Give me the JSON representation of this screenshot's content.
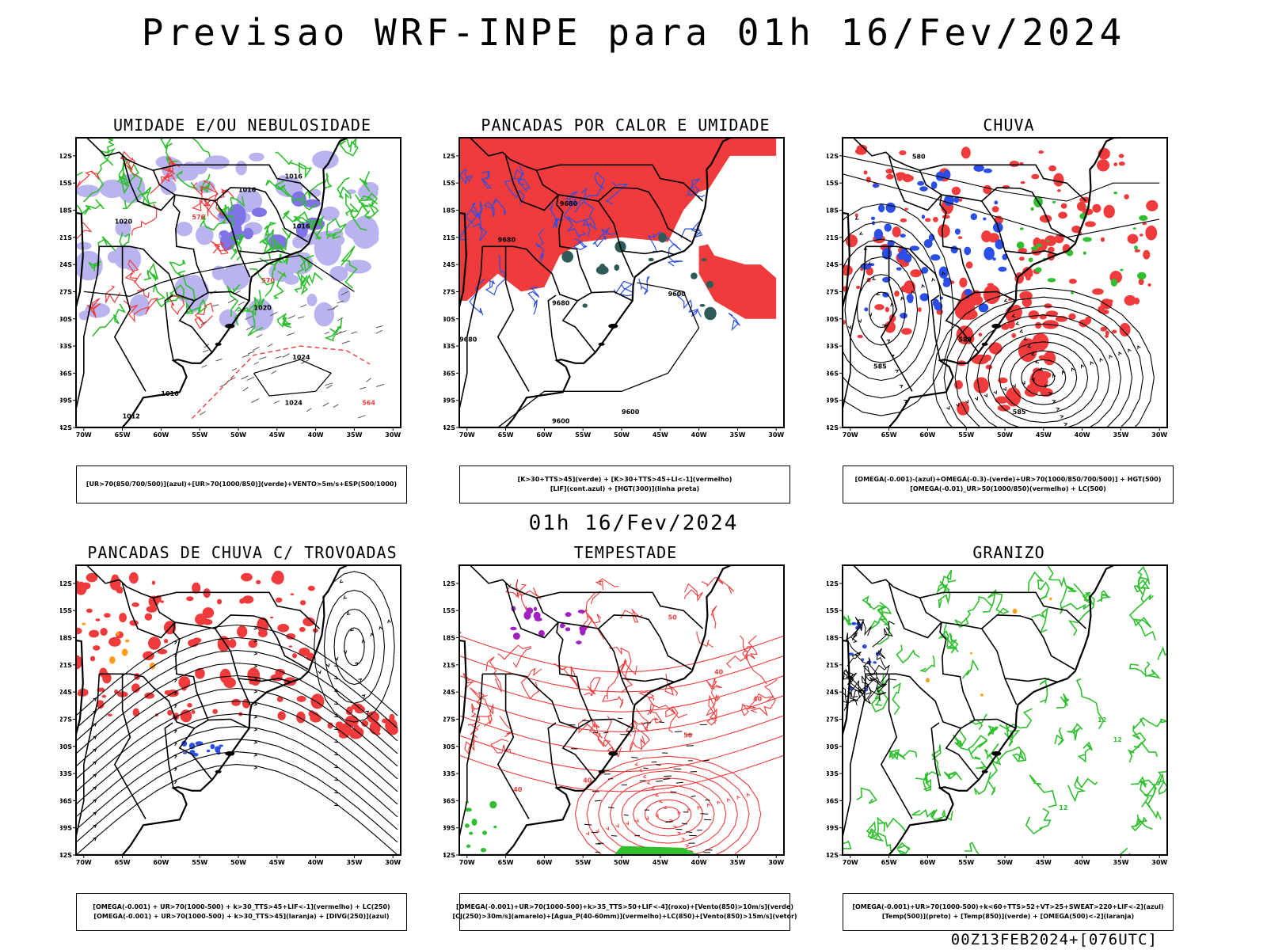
{
  "header": {
    "title": "Previsao WRF-INPE  para 01h 16/Fev/2024"
  },
  "mid_label": "01h 16/Fev/2024",
  "footer": "00Z13FEB2024+[076UTC]",
  "axes": {
    "lat_labels": [
      "12S",
      "15S",
      "18S",
      "21S",
      "24S",
      "27S",
      "30S",
      "33S",
      "36S",
      "39S",
      "42S"
    ],
    "lon_labels": [
      "70W",
      "65W",
      "60W",
      "55W",
      "50W",
      "45W",
      "40W",
      "35W",
      "30W"
    ]
  },
  "colors": {
    "red": "#ef3b3b",
    "green": "#2fbf2f",
    "blue": "#2b4fe6",
    "lavender": "#b9b4f0",
    "teal": "#2d5b57",
    "orange": "#ff9d1a",
    "purple": "#a020c0"
  },
  "panels": [
    {
      "title": "UMIDADE E/OU NEBULOSIDADE",
      "legend": [
        "[UR>70(850/700/500)](azul)+[UR>70(1000/850)](verde)+VENTO>5m/s+ESP(500/1000)"
      ],
      "contour_labels": [
        "1016",
        "1016",
        "1020",
        "1016",
        "1024",
        "1020",
        "1024",
        "1012",
        "1016"
      ],
      "red_labels": [
        "576",
        "570",
        "564"
      ]
    },
    {
      "title": "PANCADAS POR CALOR E UMIDADE",
      "legend": [
        "[K>30+TTS>45](verde) + [K>30+TTS>45+LI<-1](vermelho)",
        "[LIF](cont.azul) + [HGT(300)](linha preta)"
      ],
      "contour_labels": [
        "9680",
        "9680",
        "9600",
        "9680",
        "9600",
        "9600",
        "9680"
      ]
    },
    {
      "title": "CHUVA",
      "legend": [
        "[OMEGA(-0.001)-(azul)+OMEGA(-0.3)-(verde)+UR>70(1000/850/700/500)] + HGT(500)",
        "[OMEGA(-0.01)_UR>50(1000/850)(vermelho) + LC(500)"
      ],
      "contour_labels": [
        "580",
        "585",
        "585",
        "580"
      ]
    },
    {
      "title": "PANCADAS DE CHUVA C/ TROVOADAS",
      "legend": [
        "[OMEGA(-0.001) + UR>70(1000-500) + k>30_TTS>45+LIF<-1](vermelho) + LC(250)",
        "[OMEGA(-0.001) + UR>70(1000-500) + k>30_TTS>45](laranja) + [DIVG(250)](azul)"
      ]
    },
    {
      "title": "TEMPESTADE",
      "legend": [
        "[OMEGA(-0.001)+UR>70(1000-500)+k>35_TTS>50+LIF<-4](roxo)+[Vento(850)>10m/s](verde)",
        "[CJ(250)>30m/s](amarelo)+[Agua_P(40-60mm)](vermelho)+LC(850)+[Vento(850)>15m/s](vetor)"
      ],
      "contour_labels": [
        "50",
        "40",
        "40",
        "50",
        "40",
        "40"
      ]
    },
    {
      "title": "GRANIZO",
      "legend": [
        "[OMEGA(-0.001)+UR>70(1000-500)+k<60+TTS>52+VT>25+SWEAT>220+LIF<-2](azul)",
        "[Temp(500)](preto) + [Temp(850)](verde) + [OMEGA(500)<-2](laranja)"
      ],
      "contour_labels": [
        "12",
        "12",
        "12"
      ]
    }
  ]
}
